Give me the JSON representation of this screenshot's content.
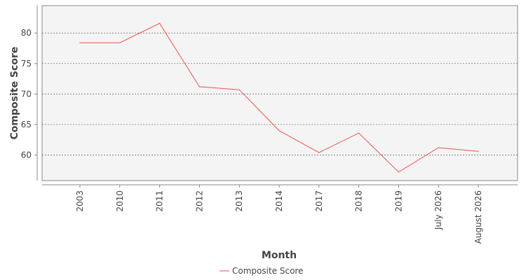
{
  "chart_data": {
    "type": "line",
    "title": "",
    "xlabel": "Month",
    "ylabel": "Composite Score",
    "categories": [
      "2003",
      "2010",
      "2011",
      "2012",
      "2013",
      "2014",
      "2017",
      "2018",
      "2019",
      "July 2026",
      "August 2026"
    ],
    "series": [
      {
        "name": "Composite Score",
        "color": "#f0504b",
        "values": [
          78.4,
          78.4,
          81.6,
          71.2,
          70.7,
          64.0,
          60.4,
          63.6,
          57.2,
          61.2,
          60.6
        ]
      }
    ],
    "yticks": [
      60,
      65,
      70,
      75,
      80
    ],
    "ylim": [
      55.8,
      84.5
    ],
    "grid": true,
    "legend_position": "bottom"
  }
}
